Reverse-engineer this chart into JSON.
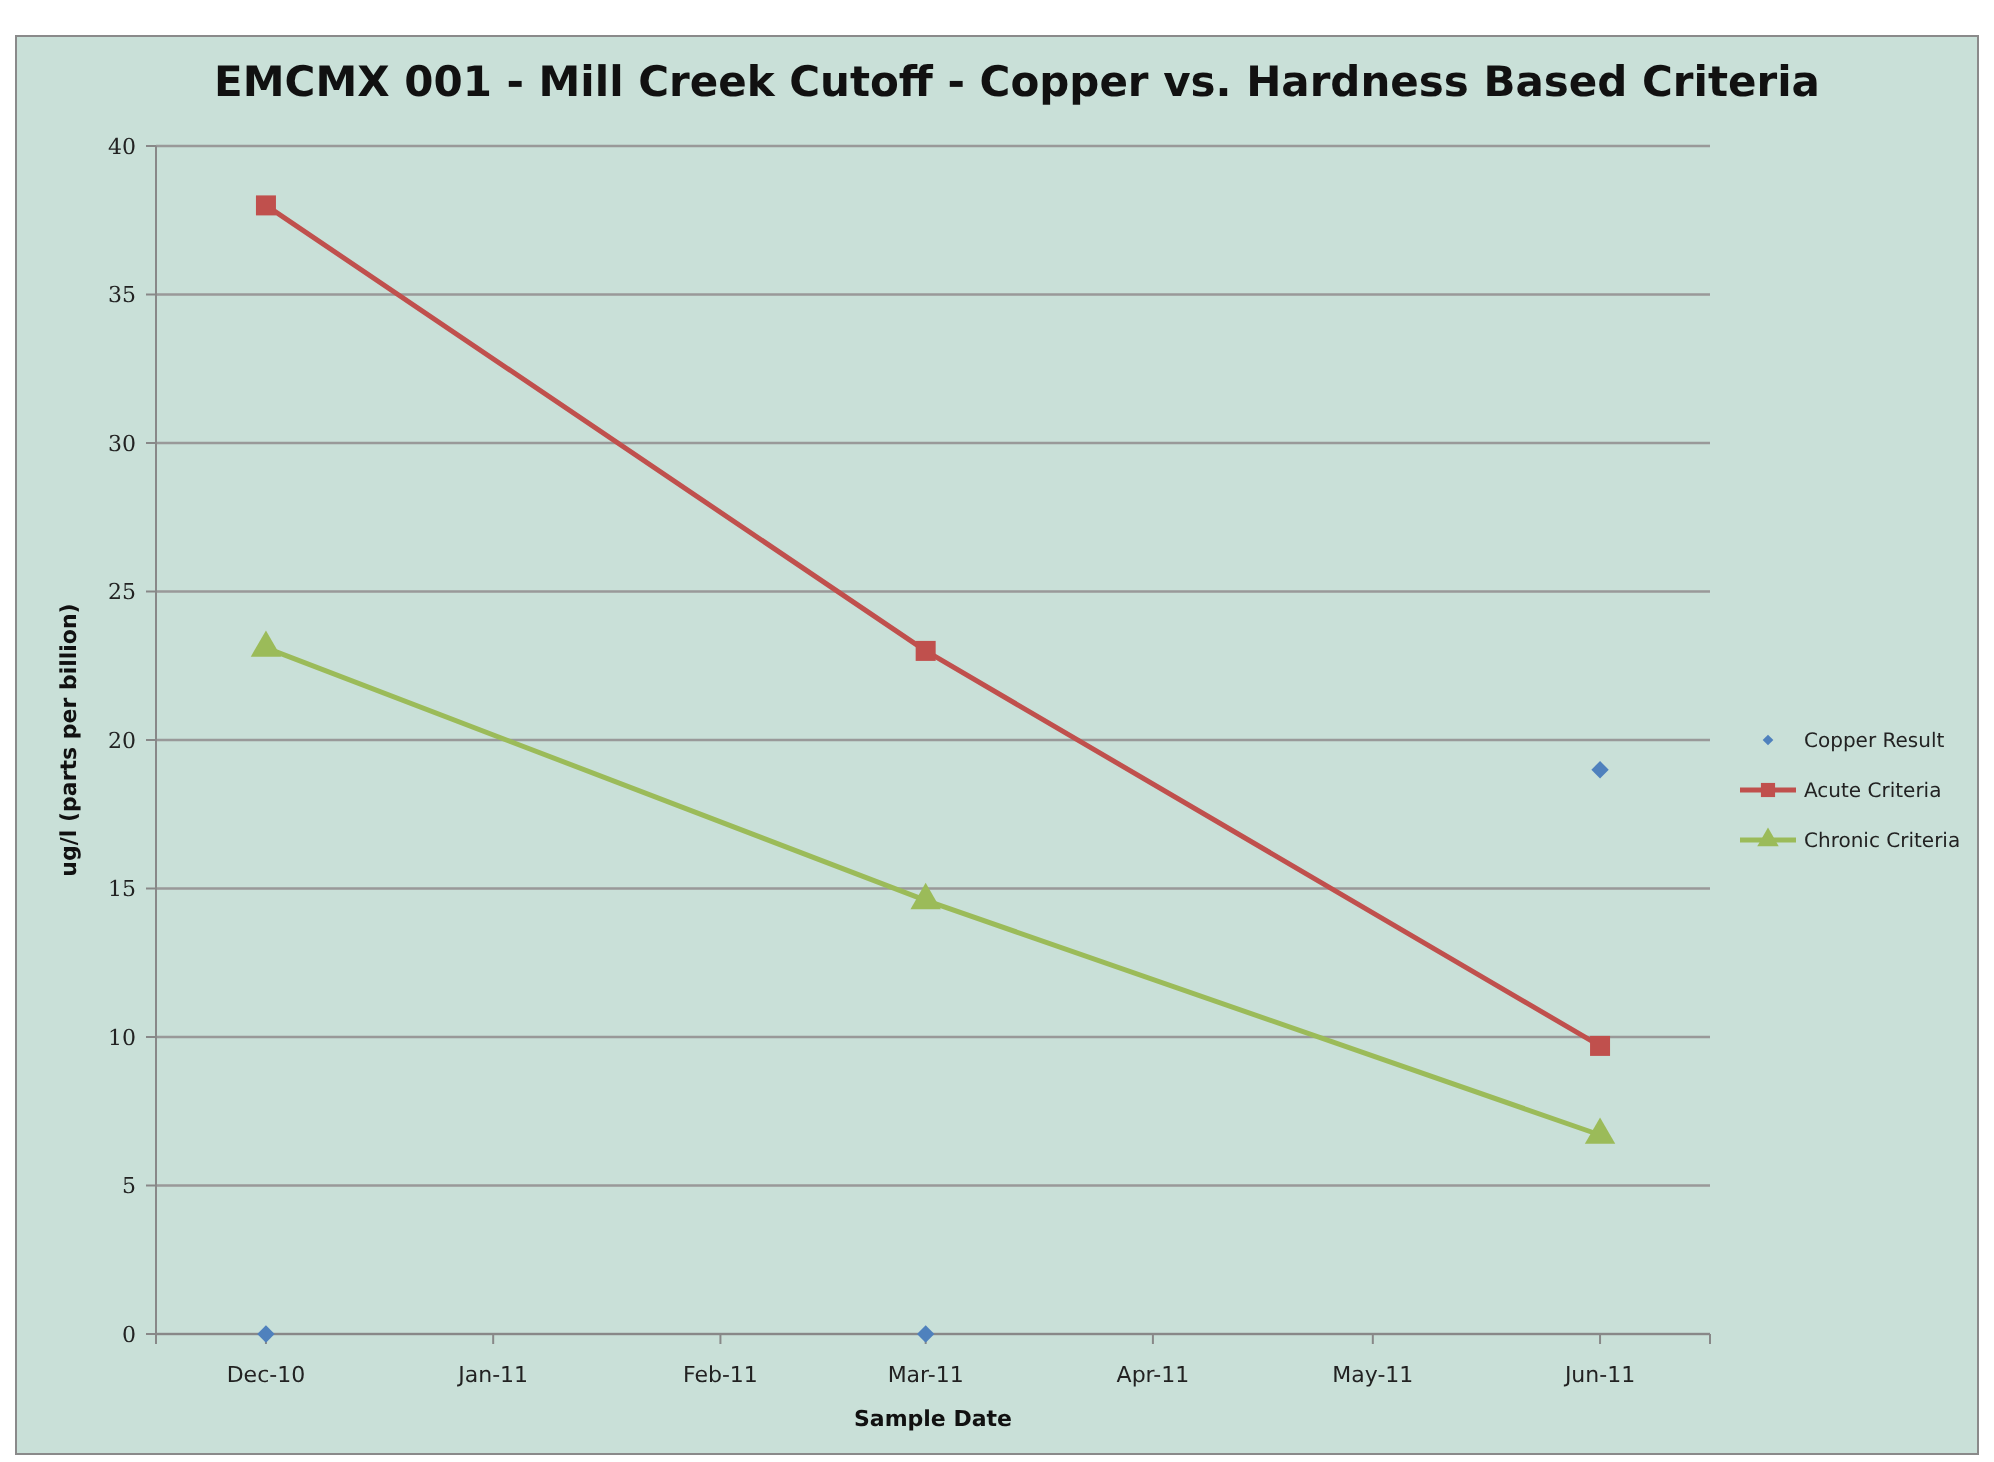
{
  "chart_data": {
    "type": "line",
    "title": "EMCMX 001 - Mill Creek Cutoff - Copper vs. Hardness Based Criteria",
    "xlabel": "Sample Date",
    "ylabel": "ug/l  (parts per billion)",
    "x": [
      "2010-12",
      "2011-03",
      "2011-06"
    ],
    "xlim": [
      "2010-11-16",
      "2011-06-16"
    ],
    "xticks": [
      {
        "value": "2010-12",
        "label": "Dec-10"
      },
      {
        "value": "2011-01",
        "label": "Jan-11"
      },
      {
        "value": "2011-02",
        "label": "Feb-11"
      },
      {
        "value": "2011-03",
        "label": "Mar-11"
      },
      {
        "value": "2011-04",
        "label": "Apr-11"
      },
      {
        "value": "2011-05",
        "label": "May-11"
      },
      {
        "value": "2011-06",
        "label": "Jun-11"
      }
    ],
    "ylim": [
      0,
      40
    ],
    "yticks": [
      0,
      5,
      10,
      15,
      20,
      25,
      30,
      35,
      40
    ],
    "grid": "y",
    "legend": "right",
    "series": [
      {
        "name": "Copper Result",
        "type": "scatter",
        "marker": "diamond",
        "color": "#4f81bd",
        "values": [
          0,
          0,
          19
        ]
      },
      {
        "name": "Acute Criteria",
        "type": "line",
        "marker": "square",
        "color": "#c0504d",
        "values": [
          38,
          23,
          9.7
        ]
      },
      {
        "name": "Chronic Criteria",
        "type": "line",
        "marker": "triangle",
        "color": "#9bbb59",
        "values": [
          23.1,
          14.6,
          6.7
        ]
      }
    ]
  }
}
